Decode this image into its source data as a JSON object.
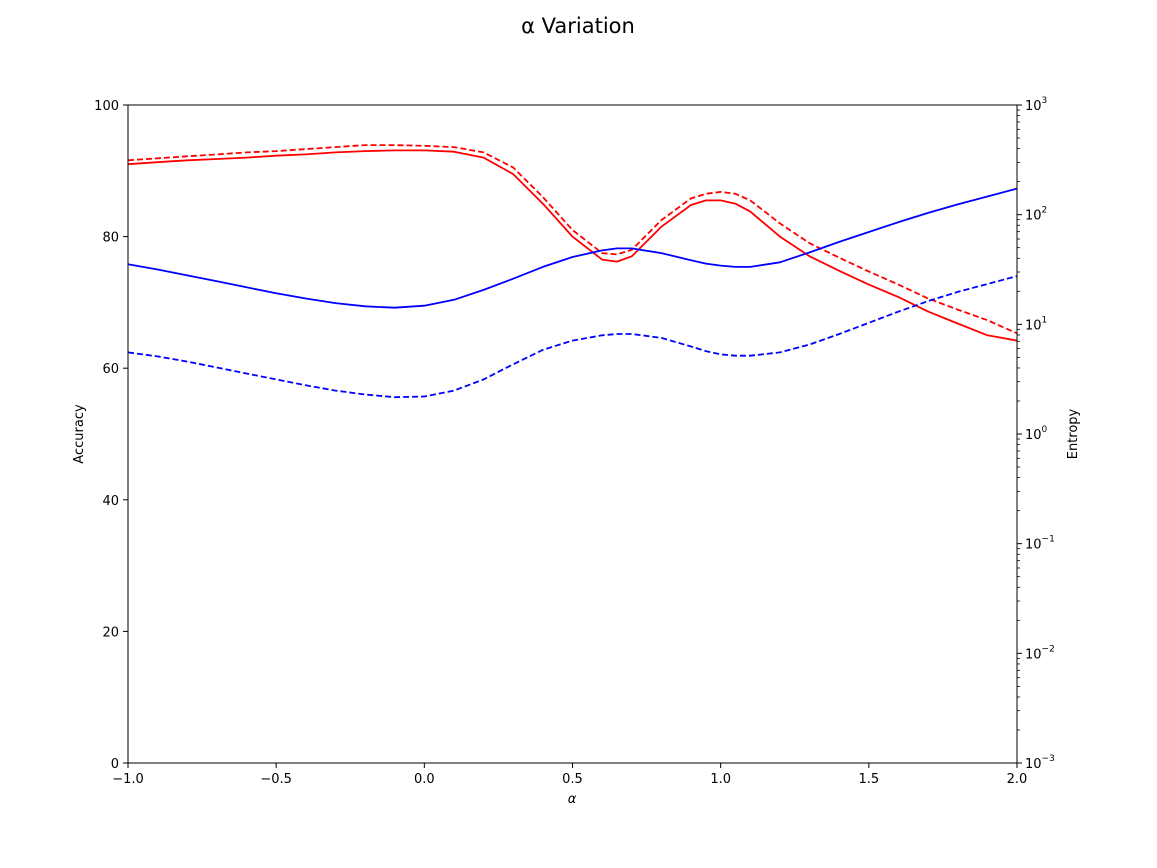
{
  "chart_data": {
    "type": "line",
    "title": "α Variation",
    "xlabel": "α",
    "ylabel": "Accuracy",
    "y2label": "Entropy",
    "xlim": [
      -1.0,
      2.0
    ],
    "ylim": [
      0,
      100
    ],
    "y2lim": [
      0.001,
      1000
    ],
    "y2scale": "log",
    "grid": false,
    "legend": "none",
    "x_ticks": [
      "−1.0",
      "−0.5",
      "0.0",
      "0.5",
      "1.0",
      "1.5",
      "2.0"
    ],
    "y_ticks": [
      "0",
      "20",
      "40",
      "60",
      "80",
      "100"
    ],
    "y2_ticks": [
      {
        "base": "10",
        "exp": "−3"
      },
      {
        "base": "10",
        "exp": "−2"
      },
      {
        "base": "10",
        "exp": "−1"
      },
      {
        "base": "10",
        "exp": "0"
      },
      {
        "base": "10",
        "exp": "1"
      },
      {
        "base": "10",
        "exp": "2"
      },
      {
        "base": "10",
        "exp": "3"
      }
    ],
    "x": [
      -1.0,
      -0.9,
      -0.8,
      -0.7,
      -0.6,
      -0.5,
      -0.4,
      -0.3,
      -0.2,
      -0.1,
      0.0,
      0.1,
      0.2,
      0.3,
      0.4,
      0.5,
      0.6,
      0.65,
      0.7,
      0.8,
      0.9,
      0.95,
      1.0,
      1.05,
      1.1,
      1.2,
      1.3,
      1.4,
      1.5,
      1.6,
      1.7,
      1.8,
      1.9,
      2.0
    ],
    "series": [
      {
        "axis": "left",
        "color": "#ff0000",
        "dash": "solid",
        "values": [
          91.0,
          91.3,
          91.6,
          91.8,
          92.0,
          92.3,
          92.5,
          92.8,
          93.0,
          93.1,
          93.1,
          92.9,
          92.0,
          89.5,
          85.0,
          80.0,
          76.5,
          76.2,
          77.0,
          81.5,
          84.8,
          85.5,
          85.5,
          85.0,
          83.8,
          80.0,
          77.0,
          74.8,
          72.7,
          70.8,
          68.6,
          66.8,
          65.0,
          64.2
        ]
      },
      {
        "axis": "left",
        "color": "#ff0000",
        "dash": "dashed",
        "values": [
          91.6,
          91.9,
          92.2,
          92.5,
          92.8,
          93.0,
          93.3,
          93.6,
          93.9,
          93.9,
          93.8,
          93.6,
          92.8,
          90.5,
          86.0,
          81.0,
          77.5,
          77.3,
          78.0,
          82.5,
          85.8,
          86.5,
          86.8,
          86.5,
          85.5,
          82.0,
          79.0,
          76.8,
          74.7,
          72.7,
          70.6,
          68.9,
          67.3,
          65.3
        ]
      },
      {
        "axis": "left",
        "color": "#0000ff",
        "dash": "solid",
        "values": [
          75.8,
          75.0,
          74.1,
          73.2,
          72.3,
          71.4,
          70.6,
          69.9,
          69.4,
          69.2,
          69.5,
          70.4,
          71.9,
          73.6,
          75.4,
          76.9,
          77.9,
          78.2,
          78.2,
          77.5,
          76.4,
          75.9,
          75.6,
          75.4,
          75.4,
          76.1,
          77.6,
          79.2,
          80.7,
          82.2,
          83.6,
          84.9,
          86.1,
          87.3
        ]
      },
      {
        "axis": "left",
        "color": "#0000ff",
        "dash": "dashed",
        "values": [
          62.4,
          61.8,
          61.0,
          60.1,
          59.2,
          58.3,
          57.4,
          56.6,
          56.0,
          55.6,
          55.7,
          56.6,
          58.3,
          60.6,
          62.8,
          64.2,
          65.0,
          65.2,
          65.2,
          64.6,
          63.3,
          62.6,
          62.1,
          61.9,
          61.9,
          62.4,
          63.6,
          65.2,
          66.9,
          68.6,
          70.2,
          71.6,
          72.8,
          74.0
        ]
      }
    ]
  }
}
